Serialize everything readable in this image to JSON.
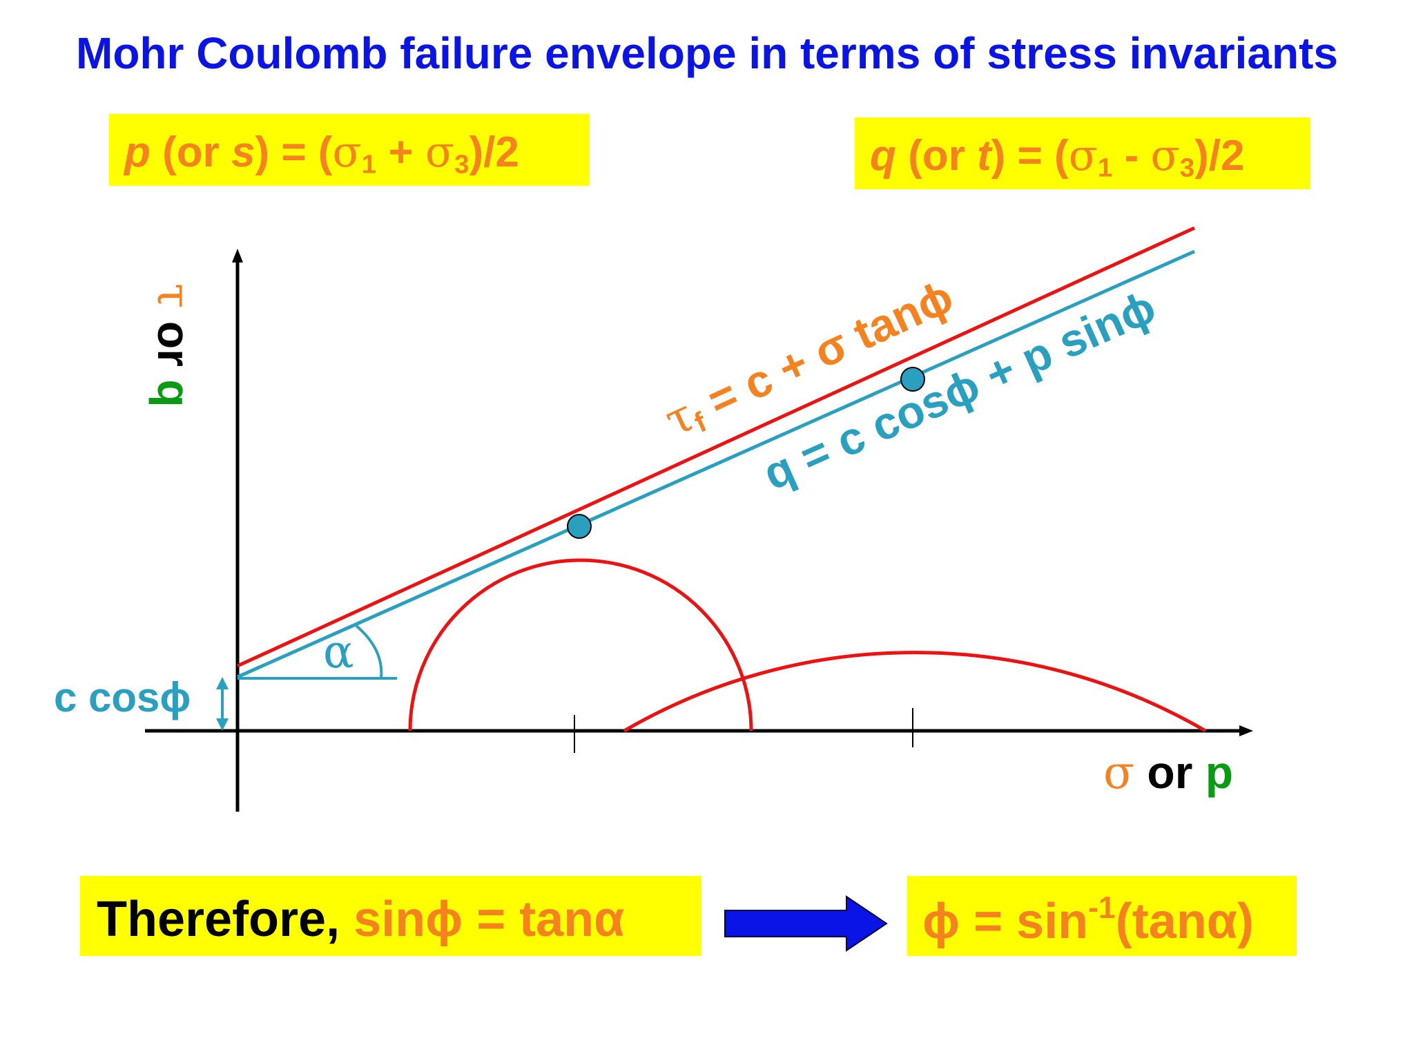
{
  "title": "Mohr Coulomb failure envelope in terms of stress invariants",
  "definitions": {
    "p_def": {
      "name": "p",
      "alias": "s",
      "rhs_sign": "+"
    },
    "q_def": {
      "name": "q",
      "alias": "t",
      "rhs_sign": "-"
    },
    "sigma": "σ",
    "sub1": "1",
    "sub3": "3",
    "divisor": "/2",
    "or": "or"
  },
  "axes": {
    "y_symbol": "τ",
    "y_or": "or",
    "y_alt": "q",
    "x_symbol": "σ",
    "x_or": "or",
    "x_alt": "p"
  },
  "equations": {
    "tau": {
      "lhs": "τ",
      "sub": "f",
      "rhs": "= c + σ tanϕ"
    },
    "q": {
      "text": "q = c cosϕ + p sinϕ"
    }
  },
  "labels": {
    "alpha": "α",
    "c_cos_phi": "c cosϕ"
  },
  "conclusion": {
    "prefix": "Therefore,",
    "relation": "sinϕ = tanα",
    "result_lhs": "ϕ = sin",
    "result_sup": "-1",
    "result_rhs": "(tanα)"
  },
  "colors": {
    "title": "#0a14e6",
    "envelope_tau": "#ee1111",
    "envelope_q": "#2aa0c0",
    "highlight": "#ffff00",
    "orange": "#f5821f",
    "green": "#0a9a14",
    "arrow": "#0a14e6"
  }
}
